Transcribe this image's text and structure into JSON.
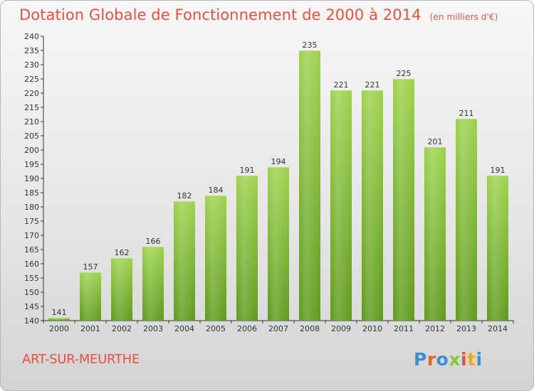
{
  "chart_data": {
    "type": "bar",
    "title": "Dotation Globale de Fonctionnement de 2000 à 2014",
    "subtitle": "(en milliers d'€)",
    "categories": [
      "2000",
      "2001",
      "2002",
      "2003",
      "2004",
      "2005",
      "2006",
      "2007",
      "2008",
      "2009",
      "2010",
      "2011",
      "2012",
      "2013",
      "2014"
    ],
    "values": [
      141,
      157,
      162,
      166,
      182,
      184,
      191,
      194,
      235,
      221,
      221,
      225,
      201,
      211,
      191
    ],
    "ylim": [
      140,
      240
    ],
    "yticks": [
      140,
      145,
      150,
      155,
      160,
      165,
      170,
      175,
      180,
      185,
      190,
      195,
      200,
      205,
      210,
      215,
      220,
      225,
      230,
      235,
      240
    ],
    "grid": false,
    "bar_color": "#8cc43c",
    "bar_color_dark": "#5e9a1c"
  },
  "footer": {
    "commune": "ART-SUR-MEURTHE",
    "logo_letters": [
      "P",
      "r",
      "o",
      "x",
      "i",
      "t",
      "i"
    ]
  },
  "colors": {
    "title": "#ef4f3f",
    "axis": "#333333"
  }
}
